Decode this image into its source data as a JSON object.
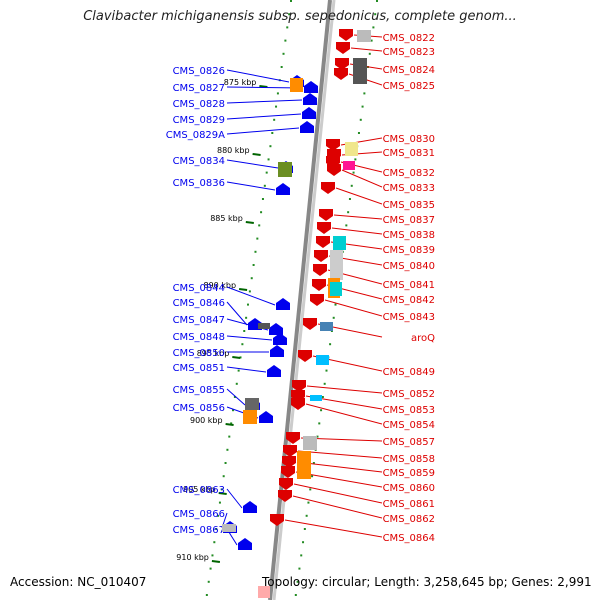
{
  "title": "Clavibacter michiganensis subsp. sepedonicus, complete genom...",
  "footer": {
    "accession": "Accession: NC_010407",
    "meta": "Topology: circular; Length: 3,258,645 bp; Genes: 2,991"
  },
  "colors": {
    "forward": "#0000ee",
    "reverse": "#dd0000",
    "backbone": "#888888",
    "tick": "#228b22"
  },
  "kbp_ticks": [
    "875 kbp",
    "880 kbp",
    "885 kbp",
    "890 kbp",
    "895 kbp",
    "900 kbp",
    "905 kbp",
    "910 kbp"
  ],
  "forward_genes": [
    "CMS_0826",
    "CMS_0827",
    "CMS_0828",
    "CMS_0829",
    "CMS_0829A",
    "CMS_0834",
    "CMS_0836",
    "CMS_0844",
    "CMS_0846",
    "CMS_0847",
    "CMS_0848",
    "CMS_0850",
    "CMS_0851",
    "CMS_0855",
    "CMS_0856",
    "CMS_0863",
    "CMS_0866",
    "CMS_0867"
  ],
  "reverse_genes": [
    "CMS_0822",
    "CMS_0823",
    "CMS_0824",
    "CMS_0825",
    "CMS_0830",
    "CMS_0831",
    "CMS_0832",
    "CMS_0833",
    "CMS_0835",
    "CMS_0837",
    "CMS_0838",
    "CMS_0839",
    "CMS_0840",
    "CMS_0841",
    "CMS_0842",
    "CMS_0843",
    "aroQ",
    "CMS_0849",
    "CMS_0852",
    "CMS_0853",
    "CMS_0854",
    "CMS_0857",
    "CMS_0858",
    "CMS_0859",
    "CMS_0860",
    "CMS_0861",
    "CMS_0862",
    "CMS_0864"
  ]
}
